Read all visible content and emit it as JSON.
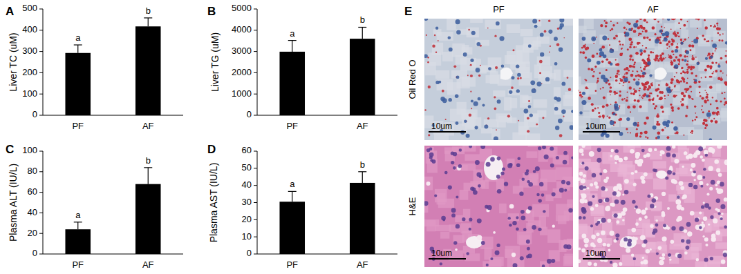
{
  "chart_data": [
    {
      "type": "bar",
      "title": "A",
      "ylabel": "Liver TC (uM)",
      "categories": [
        "PF",
        "AF"
      ],
      "values": [
        293,
        418
      ],
      "errors": [
        38,
        40
      ],
      "annotations": [
        "a",
        "b"
      ],
      "color": "#000000",
      "ylim": [
        0,
        500
      ],
      "yticks": [
        0,
        100,
        200,
        300,
        400,
        500
      ]
    },
    {
      "type": "bar",
      "title": "B",
      "ylabel": "Liver TG (uM)",
      "categories": [
        "PF",
        "AF"
      ],
      "values": [
        2990,
        3600
      ],
      "errors": [
        530,
        540
      ],
      "annotations": [
        "a",
        "b"
      ],
      "color": "#000000",
      "ylim": [
        0,
        5000
      ],
      "yticks": [
        0,
        1000,
        2000,
        3000,
        4000,
        5000
      ]
    },
    {
      "type": "bar",
      "title": "C",
      "ylabel": "Plasma ALT (IU/L)",
      "categories": [
        "PF",
        "AF"
      ],
      "values": [
        24,
        68
      ],
      "errors": [
        7,
        16
      ],
      "annotations": [
        "a",
        "b"
      ],
      "color": "#000000",
      "ylim": [
        0,
        100
      ],
      "yticks": [
        0,
        20,
        40,
        60,
        80,
        100
      ]
    },
    {
      "type": "bar",
      "title": "D",
      "ylabel": "Plasma AST (IU/L)",
      "categories": [
        "PF",
        "AF"
      ],
      "values": [
        30.5,
        41.5
      ],
      "errors": [
        6,
        6.5
      ],
      "annotations": [
        "a",
        "b"
      ],
      "color": "#000000",
      "ylim": [
        0,
        60
      ],
      "yticks": [
        0,
        10,
        20,
        30,
        40,
        50,
        60
      ]
    }
  ],
  "image_panel": {
    "title": "E",
    "columns": [
      "PF",
      "AF"
    ],
    "rows": [
      "Oil Red O",
      "H&E"
    ],
    "scale_bar": "10um"
  }
}
